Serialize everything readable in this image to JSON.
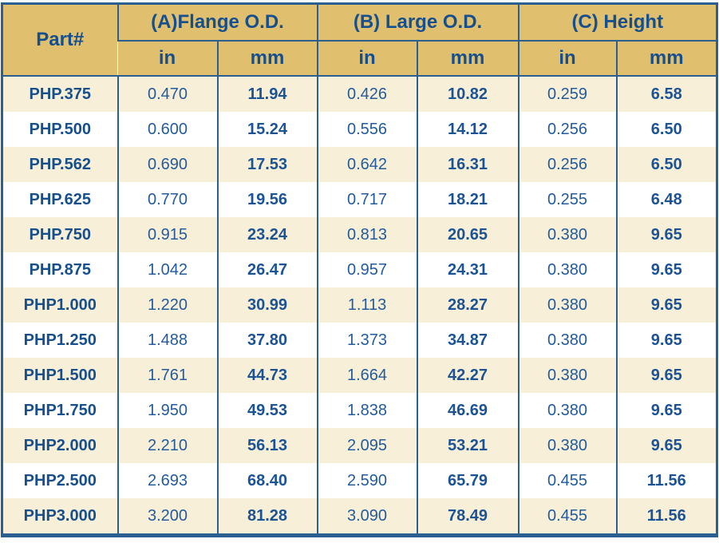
{
  "table": {
    "part_header": "Part#",
    "groups": [
      {
        "label": "(A)Flange O.D."
      },
      {
        "label": "(B) Large O.D."
      },
      {
        "label": "(C) Height"
      }
    ],
    "unit_headers": [
      "in",
      "mm",
      "in",
      "mm",
      "in",
      "mm"
    ],
    "rows": [
      {
        "part": "PHP.375",
        "values": [
          "0.470",
          "11.94",
          "0.426",
          "10.82",
          "0.259",
          "6.58"
        ]
      },
      {
        "part": "PHP.500",
        "values": [
          "0.600",
          "15.24",
          "0.556",
          "14.12",
          "0.256",
          "6.50"
        ]
      },
      {
        "part": "PHP.562",
        "values": [
          "0.690",
          "17.53",
          "0.642",
          "16.31",
          "0.256",
          "6.50"
        ]
      },
      {
        "part": "PHP.625",
        "values": [
          "0.770",
          "19.56",
          "0.717",
          "18.21",
          "0.255",
          "6.48"
        ]
      },
      {
        "part": "PHP.750",
        "values": [
          "0.915",
          "23.24",
          "0.813",
          "20.65",
          "0.380",
          "9.65"
        ]
      },
      {
        "part": "PHP.875",
        "values": [
          "1.042",
          "26.47",
          "0.957",
          "24.31",
          "0.380",
          "9.65"
        ]
      },
      {
        "part": "PHP1.000",
        "values": [
          "1.220",
          "30.99",
          "1.113",
          "28.27",
          "0.380",
          "9.65"
        ]
      },
      {
        "part": "PHP1.250",
        "values": [
          "1.488",
          "37.80",
          "1.373",
          "34.87",
          "0.380",
          "9.65"
        ]
      },
      {
        "part": "PHP1.500",
        "values": [
          "1.761",
          "44.73",
          "1.664",
          "42.27",
          "0.380",
          "9.65"
        ]
      },
      {
        "part": "PHP1.750",
        "values": [
          "1.950",
          "49.53",
          "1.838",
          "46.69",
          "0.380",
          "9.65"
        ]
      },
      {
        "part": "PHP2.000",
        "values": [
          "2.210",
          "56.13",
          "2.095",
          "53.21",
          "0.380",
          "9.65"
        ]
      },
      {
        "part": "PHP2.500",
        "values": [
          "2.693",
          "68.40",
          "2.590",
          "65.79",
          "0.455",
          "11.56"
        ]
      },
      {
        "part": "PHP3.000",
        "values": [
          "3.200",
          "81.28",
          "3.090",
          "78.49",
          "0.455",
          "11.56"
        ]
      }
    ]
  },
  "colors": {
    "header_bg": "#e0bf6e",
    "row_stripe": "#f7efd7",
    "row_white": "#ffffff",
    "text_blue": "#1f5899",
    "border_blue": "#2a5f8f"
  },
  "chart_data": {
    "type": "table",
    "column_groups": [
      "(A)Flange O.D.",
      "(B) Large O.D.",
      "(C) Height"
    ],
    "columns": [
      "Part#",
      "A_in",
      "A_mm",
      "B_in",
      "B_mm",
      "C_in",
      "C_mm"
    ],
    "rows": [
      [
        "PHP.375",
        0.47,
        11.94,
        0.426,
        10.82,
        0.259,
        6.58
      ],
      [
        "PHP.500",
        0.6,
        15.24,
        0.556,
        14.12,
        0.256,
        6.5
      ],
      [
        "PHP.562",
        0.69,
        17.53,
        0.642,
        16.31,
        0.256,
        6.5
      ],
      [
        "PHP.625",
        0.77,
        19.56,
        0.717,
        18.21,
        0.255,
        6.48
      ],
      [
        "PHP.750",
        0.915,
        23.24,
        0.813,
        20.65,
        0.38,
        9.65
      ],
      [
        "PHP.875",
        1.042,
        26.47,
        0.957,
        24.31,
        0.38,
        9.65
      ],
      [
        "PHP1.000",
        1.22,
        30.99,
        1.113,
        28.27,
        0.38,
        9.65
      ],
      [
        "PHP1.250",
        1.488,
        37.8,
        1.373,
        34.87,
        0.38,
        9.65
      ],
      [
        "PHP1.500",
        1.761,
        44.73,
        1.664,
        42.27,
        0.38,
        9.65
      ],
      [
        "PHP1.750",
        1.95,
        49.53,
        1.838,
        46.69,
        0.38,
        9.65
      ],
      [
        "PHP2.000",
        2.21,
        56.13,
        2.095,
        53.21,
        0.38,
        9.65
      ],
      [
        "PHP2.500",
        2.693,
        68.4,
        2.59,
        65.79,
        0.455,
        11.56
      ],
      [
        "PHP3.000",
        3.2,
        81.28,
        3.09,
        78.49,
        0.455,
        11.56
      ]
    ]
  }
}
